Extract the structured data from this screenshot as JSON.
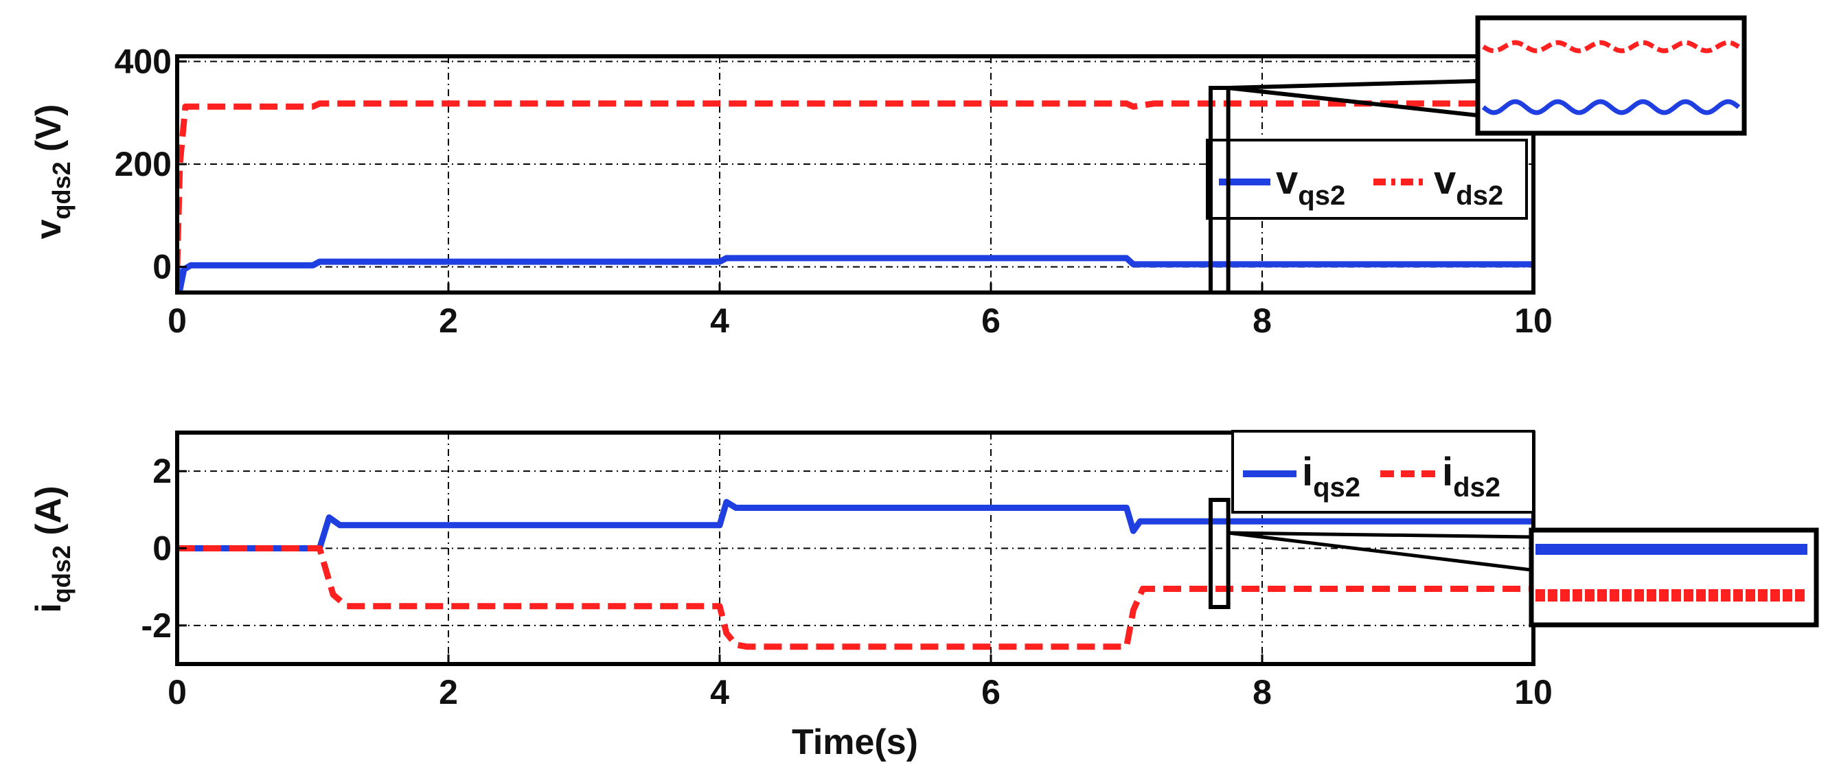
{
  "chart_data": [
    {
      "type": "line",
      "ylabel": {
        "main": "v",
        "sub": "qds2",
        "unit": " (V)"
      },
      "xlim": [
        0,
        10
      ],
      "ylim": [
        -50,
        410
      ],
      "xticks": [
        "0",
        "2",
        "4",
        "6",
        "8",
        "10"
      ],
      "yticks": [
        "0",
        "200",
        "400"
      ],
      "ytick_values": [
        0,
        200,
        400
      ],
      "grid": true,
      "legend": "right, below inset",
      "legend_entries": [
        {
          "main": "v",
          "sub": "qs2"
        },
        {
          "main": "v",
          "sub": "ds2"
        }
      ],
      "colors": {
        "qs2": "#1f3fe0",
        "ds2": "#ff2020"
      },
      "series": [
        {
          "name": "vqs2",
          "style": "solid",
          "x": [
            0,
            0.02,
            0.05,
            0.1,
            1.0,
            1.05,
            1.2,
            4.0,
            4.05,
            7.0,
            7.05,
            7.2,
            10
          ],
          "y": [
            0,
            -45,
            -5,
            3,
            3,
            10,
            10,
            10,
            17,
            17,
            5,
            5,
            5
          ]
        },
        {
          "name": "vds2",
          "style": "dashed",
          "x": [
            0,
            0.02,
            0.06,
            0.12,
            1.0,
            1.05,
            1.2,
            7.0,
            7.05,
            7.2,
            10
          ],
          "y": [
            0,
            200,
            312,
            312,
            312,
            318,
            318,
            318,
            312,
            318,
            318
          ]
        }
      ],
      "zoom_box_x": [
        7.62,
        7.75
      ]
    },
    {
      "type": "line",
      "xlabel": "Time(s)",
      "ylabel": {
        "main": "i",
        "sub": "qds2",
        "unit": " (A)"
      },
      "xlim": [
        0,
        10
      ],
      "ylim": [
        -3,
        3
      ],
      "xticks": [
        "0",
        "2",
        "4",
        "6",
        "8",
        "10"
      ],
      "yticks": [
        "2",
        "0",
        "-2"
      ],
      "ytick_values": [
        2,
        0,
        -2
      ],
      "grid": true,
      "legend": "top-right",
      "legend_entries": [
        {
          "main": "i",
          "sub": "qs2"
        },
        {
          "main": "i",
          "sub": "ds2"
        }
      ],
      "colors": {
        "qs2": "#1f3fe0",
        "ds2": "#ff2020"
      },
      "series": [
        {
          "name": "iqs2",
          "style": "solid",
          "x": [
            0,
            1.05,
            1.12,
            1.2,
            1.3,
            4.0,
            4.05,
            4.12,
            4.2,
            7.0,
            7.05,
            7.1,
            7.2,
            10
          ],
          "y": [
            0,
            0,
            0.8,
            0.6,
            0.6,
            0.6,
            1.2,
            1.05,
            1.05,
            1.05,
            0.45,
            0.7,
            0.7,
            0.7
          ]
        },
        {
          "name": "ids2",
          "style": "dashed",
          "x": [
            0,
            1.05,
            1.15,
            1.25,
            4.0,
            4.05,
            4.12,
            4.2,
            7.0,
            7.05,
            7.12,
            7.2,
            10
          ],
          "y": [
            0,
            0,
            -1.2,
            -1.5,
            -1.5,
            -2.2,
            -2.5,
            -2.55,
            -2.55,
            -1.6,
            -1.05,
            -1.05,
            -1.05
          ]
        }
      ],
      "zoom_box_x": [
        7.62,
        7.75
      ]
    }
  ]
}
